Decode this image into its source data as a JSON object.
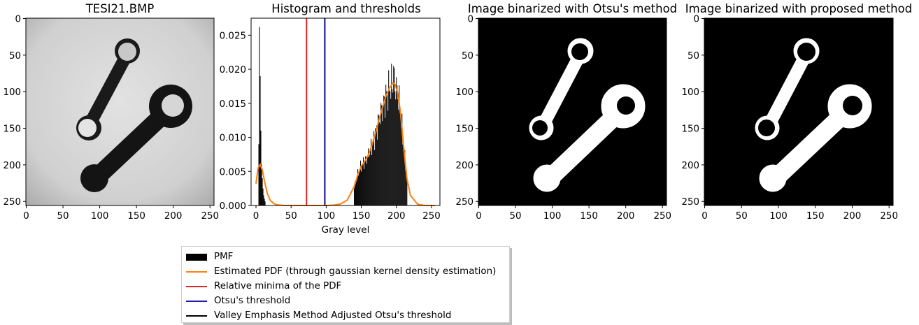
{
  "colors": {
    "pmf": "#000000",
    "pdf": "#ff7f0e",
    "minima": "#d62728",
    "otsu": "#1f1fa8",
    "valley": "#000000",
    "frame": "#000000"
  },
  "chart_data": [
    {
      "type": "image",
      "title": "TESI21.BMP",
      "xlim": [
        0,
        256
      ],
      "ylim": [
        256,
        0
      ],
      "xticks": [
        0,
        50,
        100,
        150,
        200,
        250
      ],
      "yticks": [
        0,
        50,
        100,
        150,
        200,
        250
      ],
      "content": "grayscale photo of two dark wrenches on a light gray background"
    },
    {
      "type": "bar",
      "title": "Histogram and thresholds",
      "xlabel": "Gray level",
      "ylabel": "",
      "xlim": [
        -7,
        262
      ],
      "ylim": [
        0,
        0.0275
      ],
      "xticks": [
        0,
        50,
        100,
        150,
        200,
        250
      ],
      "yticks": [
        "0.000",
        "0.005",
        "0.010",
        "0.015",
        "0.020",
        "0.025"
      ],
      "ytick_values": [
        0,
        0.005,
        0.01,
        0.015,
        0.02,
        0.025
      ],
      "series": [
        {
          "name": "PMF",
          "kind": "bar",
          "peaks": [
            [
              4,
              0.009
            ],
            [
              5,
              0.0262
            ],
            [
              6,
              0.019
            ],
            [
              7,
              0.011
            ],
            [
              8,
              0.006
            ],
            [
              9,
              0.004
            ],
            [
              10,
              0.0025
            ],
            [
              11,
              0.0015
            ],
            [
              12,
              0.001
            ],
            [
              13,
              0.0006
            ]
          ],
          "main_mode": {
            "start": 140,
            "end": 215,
            "peak_x": 196,
            "peak_y": 0.0205
          }
        },
        {
          "name": "Estimated PDF (through gaussian kernel density estimation)",
          "kind": "line",
          "x": [
            0,
            3,
            6,
            9,
            12,
            16,
            20,
            25,
            30,
            40,
            50,
            60,
            80,
            100,
            110,
            120,
            130,
            140,
            145,
            150,
            155,
            160,
            165,
            170,
            175,
            180,
            185,
            190,
            195,
            198,
            202,
            206,
            210,
            215,
            220,
            230,
            240,
            255
          ],
          "y": [
            0.0032,
            0.0055,
            0.006,
            0.0052,
            0.0036,
            0.0018,
            0.0008,
            0.0003,
            0.0001,
            0.0,
            0.0,
            0.0,
            0.0,
            0.0,
            5e-05,
            0.0002,
            0.0008,
            0.0028,
            0.0045,
            0.0058,
            0.0065,
            0.0074,
            0.0088,
            0.0105,
            0.0125,
            0.0143,
            0.016,
            0.0172,
            0.018,
            0.0178,
            0.0165,
            0.0135,
            0.009,
            0.004,
            0.0015,
            0.0002,
            0.0,
            0.0
          ]
        },
        {
          "name": "Relative minima of the PDF",
          "kind": "vline",
          "x": 72
        },
        {
          "name": "Otsu's threshold",
          "kind": "vline",
          "x": 98
        },
        {
          "name": "Valley Emphasis Method Adjusted Otsu's threshold",
          "kind": "vline",
          "x": 98
        }
      ]
    },
    {
      "type": "image",
      "title": "Image binarized with Otsu's method",
      "xlim": [
        0,
        256
      ],
      "ylim": [
        256,
        0
      ],
      "xticks": [
        0,
        50,
        100,
        150,
        200,
        250
      ],
      "yticks": [
        0,
        50,
        100,
        150,
        200,
        250
      ],
      "content": "binary image: white wrench silhouettes on black background"
    },
    {
      "type": "image",
      "title": "Image binarized with proposed method",
      "xlim": [
        0,
        256
      ],
      "ylim": [
        256,
        0
      ],
      "xticks": [
        0,
        50,
        100,
        150,
        200,
        250
      ],
      "yticks": [
        0,
        50,
        100,
        150,
        200,
        250
      ],
      "content": "binary image: white wrench silhouettes on black background"
    }
  ],
  "legend": [
    {
      "label": "PMF",
      "type": "bar",
      "color": "#000000"
    },
    {
      "label": "Estimated PDF (through gaussian kernel density estimation)",
      "type": "line",
      "color": "#ff7f0e"
    },
    {
      "label": "Relative minima of the PDF",
      "type": "line",
      "color": "#d62728"
    },
    {
      "label": "Otsu's threshold",
      "type": "line",
      "color": "#1f1fa8"
    },
    {
      "label": "Valley Emphasis Method Adjusted Otsu's threshold",
      "type": "line",
      "color": "#000000"
    }
  ]
}
